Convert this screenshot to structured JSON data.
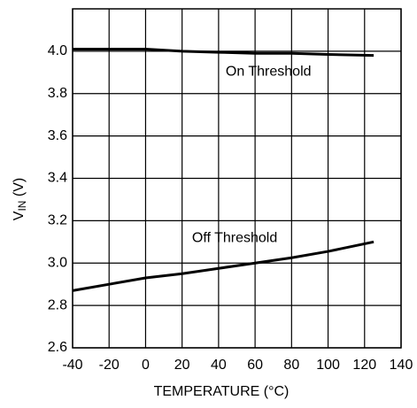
{
  "chart_data": {
    "type": "line",
    "ylabel": {
      "main": "V",
      "sub": "IN",
      "rest": " (V)"
    },
    "xlabel": "TEMPERATURE (°C)",
    "x": [
      -40,
      -20,
      0,
      20,
      40,
      60,
      80,
      100,
      125
    ],
    "series": [
      {
        "name": "On Threshold",
        "color": "#000000",
        "values": [
          4.01,
          4.01,
          4.01,
          4.0,
          3.995,
          3.99,
          3.99,
          3.985,
          3.98
        ]
      },
      {
        "name": "Off Threshold",
        "color": "#000000",
        "values": [
          2.87,
          2.9,
          2.93,
          2.95,
          2.975,
          3.0,
          3.025,
          3.055,
          3.1
        ]
      }
    ],
    "xlim": [
      -40,
      140
    ],
    "xticks": [
      -40,
      -20,
      0,
      20,
      40,
      60,
      80,
      100,
      120,
      140
    ],
    "ylim": [
      2.6,
      4.2
    ],
    "yticks": [
      2.6,
      2.8,
      {
        "value": 3.0,
        "label": "3.0"
      },
      3.2,
      3.4,
      3.6,
      3.8,
      {
        "value": 4.0,
        "label": "4.0"
      }
    ],
    "grid": true
  }
}
